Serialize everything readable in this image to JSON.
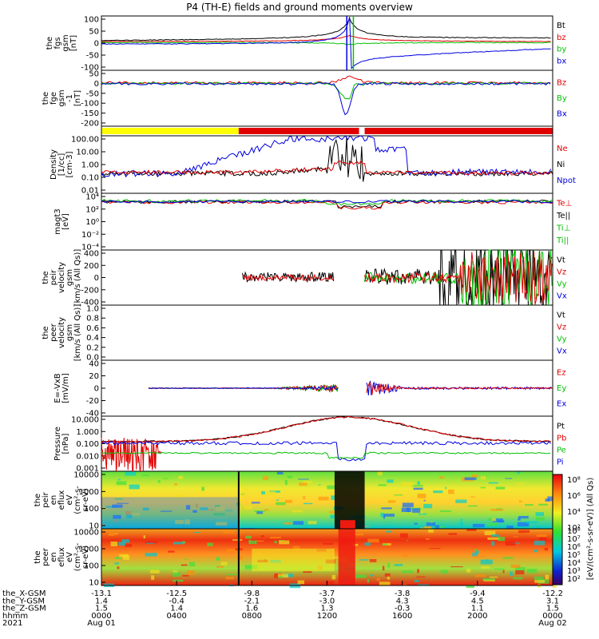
{
  "title": "P4 (TH-E) fields and ground moments overview",
  "colors": {
    "black": "#000000",
    "red": "#e00000",
    "green": "#00c000",
    "blue": "#0000e0",
    "yellow": "#ffff00",
    "flag_red": "#e00000"
  },
  "panels": [
    {
      "id": "fgs_gsm",
      "ylabel": [
        "the",
        "fgs",
        "gsm",
        "[nT]"
      ],
      "ticks": [
        "100",
        "50",
        "0",
        "-50",
        "-100"
      ],
      "legend": [
        {
          "text": "Bt",
          "color": "black"
        },
        {
          "text": "bz",
          "color": "red"
        },
        {
          "text": "by",
          "color": "green"
        },
        {
          "text": "bx",
          "color": "blue"
        }
      ]
    },
    {
      "id": "fge_gsm",
      "ylabel": [
        "the",
        "fge",
        "gsm",
        "-1",
        "[nT]"
      ],
      "ticks": [
        "50",
        "0",
        "-50",
        "-100",
        "-150",
        "-200"
      ],
      "legend": [
        {
          "text": "Bz",
          "color": "red"
        },
        {
          "text": "By",
          "color": "green"
        },
        {
          "text": "Bx",
          "color": "blue"
        }
      ]
    },
    {
      "id": "flag",
      "ylabel": [],
      "ticks": [],
      "legend": []
    },
    {
      "id": "density",
      "ylabel": [
        "Density",
        "[1/cc]",
        "[cm-3]"
      ],
      "ticks": [
        "100.00",
        "10.00",
        "1.00",
        "0.10",
        "0.01"
      ],
      "legend": [
        {
          "text": "Ne",
          "color": "red"
        },
        {
          "text": "Ni",
          "color": "black"
        },
        {
          "text": "Npot",
          "color": "blue"
        }
      ]
    },
    {
      "id": "temp",
      "ylabel": [
        "magt3",
        "[eV]"
      ],
      "ticks": [
        "10⁴",
        "10²",
        "10⁰",
        "10⁻²",
        "10⁻⁴"
      ],
      "legend": [
        {
          "text": "Te⊥",
          "color": "red"
        },
        {
          "text": "Te||",
          "color": "black"
        },
        {
          "text": "Ti⊥",
          "color": "green"
        },
        {
          "text": "Ti||",
          "color": "green"
        }
      ]
    },
    {
      "id": "peir_vel",
      "ylabel": [
        "the",
        "peir",
        "velocity",
        "gsm",
        "[km/s (All Qs)]"
      ],
      "ticks": [
        "400",
        "200",
        "0",
        "-200",
        "-400"
      ],
      "legend": [
        {
          "text": "Vt",
          "color": "black"
        },
        {
          "text": "Vz",
          "color": "red"
        },
        {
          "text": "Vy",
          "color": "green"
        },
        {
          "text": "Vx",
          "color": "blue"
        }
      ]
    },
    {
      "id": "peer_vel",
      "ylabel": [
        "the",
        "peer",
        "velocity",
        "gsm",
        "[km/s (All Qs)]"
      ],
      "ticks": [
        "1.0",
        "0.8",
        "0.6",
        "0.4",
        "0.2",
        "0.0"
      ],
      "legend": [
        {
          "text": "Vt",
          "color": "black"
        },
        {
          "text": "Vz",
          "color": "red"
        },
        {
          "text": "Vy",
          "color": "green"
        },
        {
          "text": "Vx",
          "color": "blue"
        }
      ]
    },
    {
      "id": "efield",
      "ylabel": [
        "E=-VxB",
        "[mV/m]"
      ],
      "ticks": [
        "40",
        "20",
        "0",
        "-20",
        "-40"
      ],
      "legend": [
        {
          "text": "Ez",
          "color": "red"
        },
        {
          "text": "Ey",
          "color": "green"
        },
        {
          "text": "Ex",
          "color": "blue"
        }
      ]
    },
    {
      "id": "pressure",
      "ylabel": [
        "Pressure",
        "[nPa]"
      ],
      "ticks": [
        "10.000",
        "1.000",
        "0.100",
        "0.010",
        "0.001"
      ],
      "legend": [
        {
          "text": "Pt",
          "color": "black"
        },
        {
          "text": "Pb",
          "color": "red"
        },
        {
          "text": "Pe",
          "color": "green"
        },
        {
          "text": "Pi",
          "color": "blue"
        }
      ]
    },
    {
      "id": "peir_en",
      "ylabel": [
        "the",
        "peir",
        "en",
        "eflux",
        "eV",
        "(cm²-s-",
        "sr-eV)"
      ],
      "ticks": [
        "10000",
        "1000",
        "100",
        "10"
      ],
      "legend": []
    },
    {
      "id": "peer_en",
      "ylabel": [
        "the",
        "peer",
        "en",
        "eflux",
        "eV",
        "(cm²-s-",
        "sr-eV)"
      ],
      "ticks": [
        "10000",
        "1000",
        "100",
        "10"
      ],
      "legend": []
    }
  ],
  "colorbar": {
    "label": "[eV/(cm²-s-sr-eV)] (All Qs)",
    "top_ticks": [
      "10⁸",
      "10⁶",
      "10⁴",
      "10²"
    ],
    "bottom_ticks": [
      "10⁸",
      "10⁷",
      "10⁶",
      "10⁵",
      "10⁴",
      "10³",
      "10²"
    ]
  },
  "xaxis": {
    "rows": [
      {
        "label": "the_X-GSM",
        "values": [
          "-13.1",
          "-12.5",
          "-9.8",
          "-3.7",
          "-3.8",
          "-9.4",
          "-12.2"
        ]
      },
      {
        "label": "the_Y-GSM",
        "values": [
          "1.4",
          "-0.4",
          "-2.1",
          "-3.0",
          "4.3",
          "4.5",
          "3.1"
        ]
      },
      {
        "label": "the_Z-GSM",
        "values": [
          "1.5",
          "1.4",
          "1.6",
          "1.3",
          "-0.3",
          "1.1",
          "1.5"
        ]
      },
      {
        "label": "hhmm",
        "values": [
          "0000",
          "0400",
          "0800",
          "1200",
          "1600",
          "2000",
          "0000"
        ]
      },
      {
        "label": "2021",
        "values": [
          "Aug 01",
          "",
          "",
          "",
          "",
          "",
          "Aug 02"
        ]
      }
    ]
  },
  "chart_data": {
    "type": "line",
    "title": "P4 (TH-E) fields and ground moments overview",
    "x_hhmm": [
      "0000",
      "0400",
      "0800",
      "1200",
      "1600",
      "2000",
      "0000"
    ],
    "series": [
      {
        "name": "Bt",
        "panel": "fgs_gsm",
        "x_hours": [
          0,
          4,
          8,
          10,
          12,
          13,
          14,
          16,
          18,
          20,
          22,
          24
        ],
        "values": [
          8,
          14,
          20,
          30,
          60,
          100,
          100,
          60,
          34,
          20,
          14,
          8
        ]
      },
      {
        "name": "bz",
        "panel": "fgs_gsm",
        "x_hours": [
          0,
          4,
          8,
          10,
          12,
          13,
          14,
          16,
          18,
          20,
          22,
          24
        ],
        "values": [
          5,
          8,
          12,
          18,
          25,
          40,
          40,
          25,
          18,
          12,
          8,
          5
        ]
      },
      {
        "name": "by",
        "panel": "fgs_gsm",
        "x_hours": [
          0,
          4,
          8,
          10,
          12,
          13,
          14,
          16,
          18,
          20,
          22,
          24
        ],
        "values": [
          2,
          0,
          -2,
          -3,
          -5,
          -10,
          -10,
          -5,
          -3,
          -2,
          0,
          2
        ]
      },
      {
        "name": "bx",
        "panel": "fgs_gsm",
        "x_hours": [
          0,
          4,
          8,
          10,
          12,
          13,
          14,
          16,
          18,
          20,
          22,
          24
        ],
        "values": [
          -8,
          -8,
          -6,
          -5,
          20,
          100,
          -100,
          -60,
          -40,
          -30,
          -25,
          -20
        ]
      },
      {
        "name": "Ne",
        "panel": "density",
        "x_hours": [
          0,
          4,
          8,
          12,
          13,
          14,
          16,
          20,
          24
        ],
        "values": [
          0.2,
          0.25,
          0.3,
          0.5,
          2,
          1,
          0.3,
          0.25,
          0.2
        ]
      },
      {
        "name": "Npot",
        "panel": "density",
        "x_hours": [
          0,
          4,
          8,
          10,
          12,
          13,
          14,
          16,
          20,
          24
        ],
        "values": [
          0.2,
          1.0,
          30,
          100,
          110,
          120,
          10,
          0.3,
          0.25,
          0.2
        ]
      },
      {
        "name": "Pt",
        "panel": "pressure",
        "x_hours": [
          0,
          4,
          8,
          10,
          12,
          14,
          16,
          20,
          24
        ],
        "values": [
          0.15,
          0.3,
          0.8,
          2,
          8,
          8,
          2,
          0.5,
          0.15
        ]
      },
      {
        "name": "Pi",
        "panel": "pressure",
        "x_hours": [
          0,
          4,
          8,
          12,
          13,
          14,
          16,
          20,
          24
        ],
        "values": [
          0.15,
          0.1,
          0.07,
          0.05,
          0.003,
          0.01,
          0.04,
          0.1,
          0.1
        ]
      },
      {
        "name": "Pe",
        "panel": "pressure",
        "x_hours": [
          0,
          4,
          8,
          12,
          14,
          16,
          20,
          24
        ],
        "values": [
          0.03,
          0.02,
          0.015,
          0.01,
          0.01,
          0.015,
          0.02,
          0.03
        ]
      }
    ]
  }
}
